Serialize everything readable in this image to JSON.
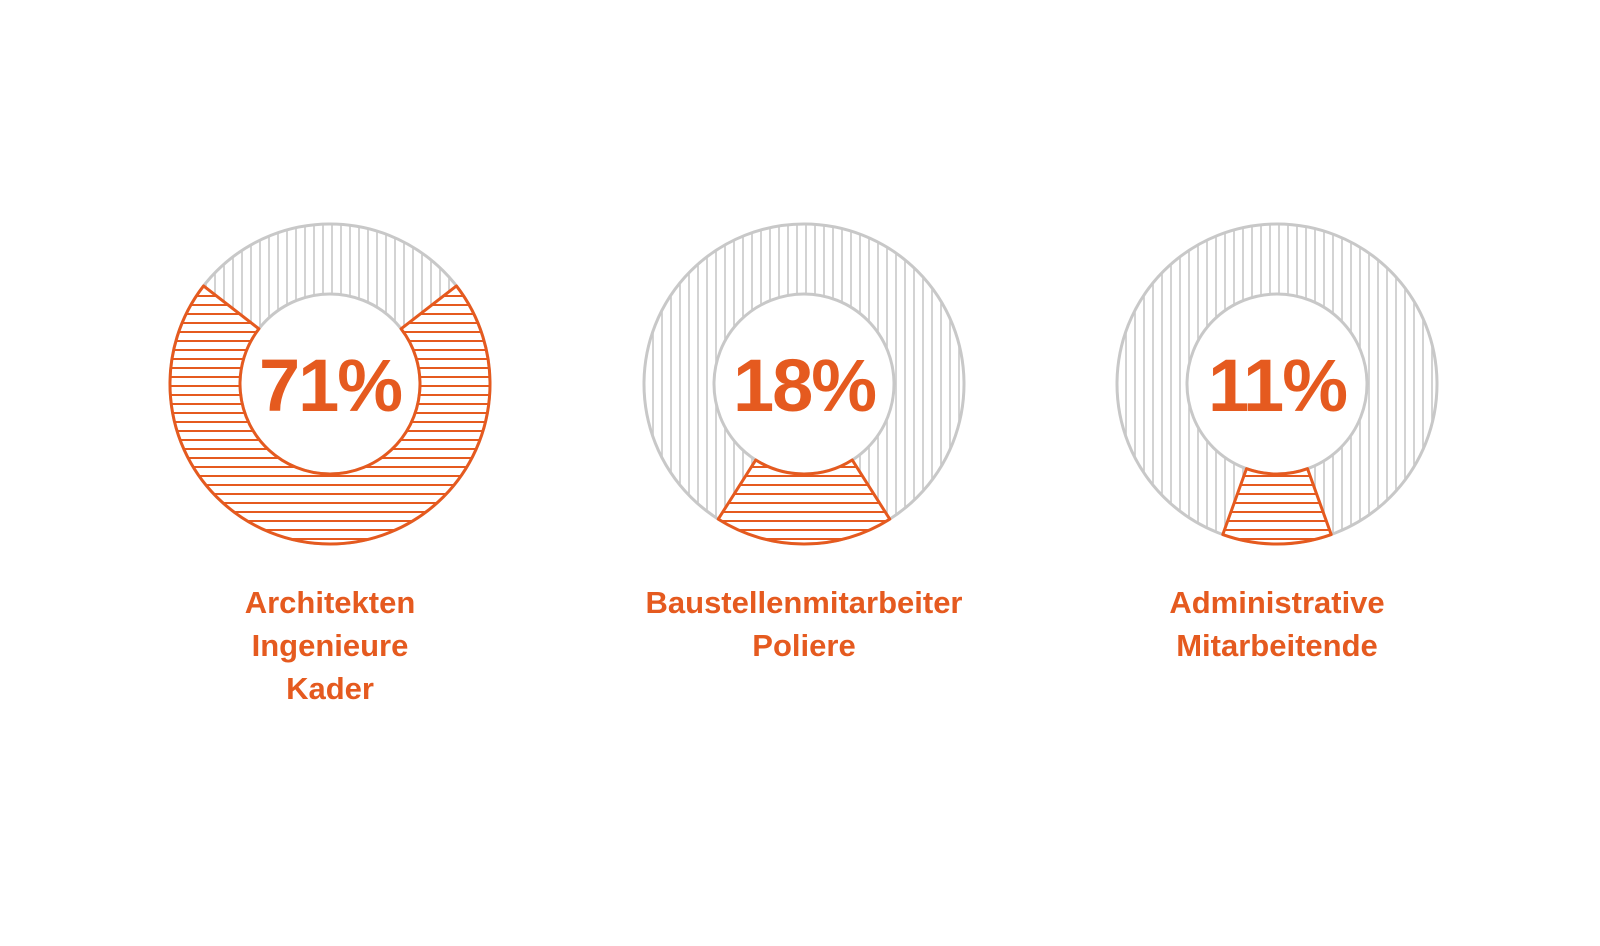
{
  "colors": {
    "accent": "#e55a1f",
    "neutral": "#c8c8c8",
    "background": "#ffffff"
  },
  "chart_data": [
    {
      "type": "donut",
      "value_percent": 71,
      "value_label": "71%",
      "category_lines": [
        "Architekten",
        "Ingenieure",
        "Kader"
      ]
    },
    {
      "type": "donut",
      "value_percent": 18,
      "value_label": "18%",
      "category_lines": [
        "Baustellenmitarbeiter",
        "Poliere"
      ]
    },
    {
      "type": "donut",
      "value_percent": 11,
      "value_label": "11%",
      "category_lines": [
        "Administrative",
        "Mitarbeitende"
      ]
    }
  ]
}
